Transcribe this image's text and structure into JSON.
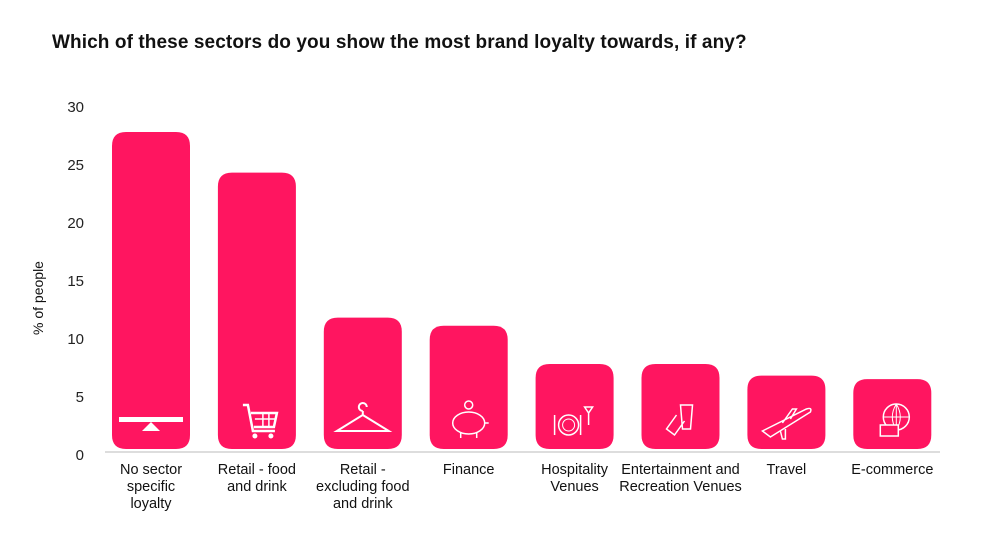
{
  "chart_data": {
    "type": "bar",
    "title": "Which of these sectors do you show the most brand loyalty towards, if any?",
    "ylabel": "% of people",
    "xlabel": "",
    "ylim": [
      0,
      30
    ],
    "yticks": [
      "0",
      "5",
      "10",
      "15",
      "20",
      "25",
      "30"
    ],
    "grid": false,
    "categories": [
      "No sector specific loyalty",
      "Retail - food and drink",
      "Retail - excluding food and drink",
      "Finance",
      "Hospitality Venues",
      "Entertainment and Recreation Venues",
      "Travel",
      "E-commerce"
    ],
    "values": [
      27.5,
      24.0,
      11.5,
      10.8,
      7.5,
      7.5,
      6.5,
      6.2
    ],
    "icons": [
      "seesaw-icon",
      "shopping-cart-icon",
      "hanger-icon",
      "piggy-bank-icon",
      "plate-cutlery-icon",
      "popcorn-ticket-icon",
      "airplane-icon",
      "globe-basket-icon"
    ],
    "bar_color": "#FF1560"
  }
}
